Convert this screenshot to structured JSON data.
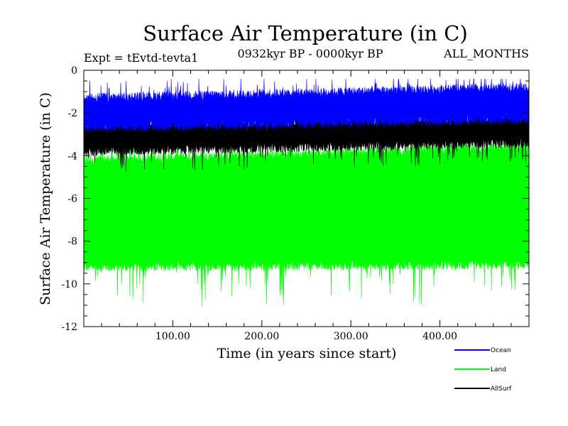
{
  "chart_data": {
    "type": "line",
    "title": "Surface Air Temperature (in C)",
    "subtitle_left": "Expt = tEvtd-tevta1",
    "subtitle_center": "0932kyr BP - 0000kyr BP",
    "subtitle_right": "ALL_MONTHS",
    "xlabel": "Time (in years since start)",
    "ylabel": "Surface Air Temperature (in C)",
    "xlim": [
      0,
      500
    ],
    "ylim": [
      -12,
      0
    ],
    "x_ticks": [
      100,
      200,
      300,
      400
    ],
    "x_tick_labels": [
      "100.00",
      "200.00",
      "300.00",
      "400.00"
    ],
    "y_ticks": [
      0,
      -2,
      -4,
      -6,
      -8,
      -10,
      -12
    ],
    "y_tick_labels": [
      "0",
      "-2",
      "-4",
      "-6",
      "-8",
      "-10",
      "-12"
    ],
    "series": [
      {
        "name": "Land",
        "color": "#00ff00",
        "band_low_start": -9.2,
        "band_low_end": -9.1,
        "band_high_start": -4.2,
        "band_high_end": -3.6,
        "min": -11.1,
        "max": -3.1
      },
      {
        "name": "AllSurf",
        "color": "#000000",
        "band_low_start": -3.8,
        "band_low_end": -3.4,
        "band_high_start": -2.6,
        "band_high_end": -2.2,
        "min": -4.8,
        "max": -1.9
      },
      {
        "name": "Ocean",
        "color": "#0000ff",
        "band_low_start": -2.7,
        "band_low_end": -2.3,
        "band_high_start": -1.3,
        "band_high_end": -0.8,
        "min": -3.0,
        "max": -0.4
      }
    ],
    "legend": {
      "placement": "bottom-right",
      "entries": [
        {
          "label": "Ocean",
          "color": "#0000ff"
        },
        {
          "label": "Land",
          "color": "#00ff00"
        },
        {
          "label": "AllSurf",
          "color": "#000000"
        }
      ]
    }
  }
}
